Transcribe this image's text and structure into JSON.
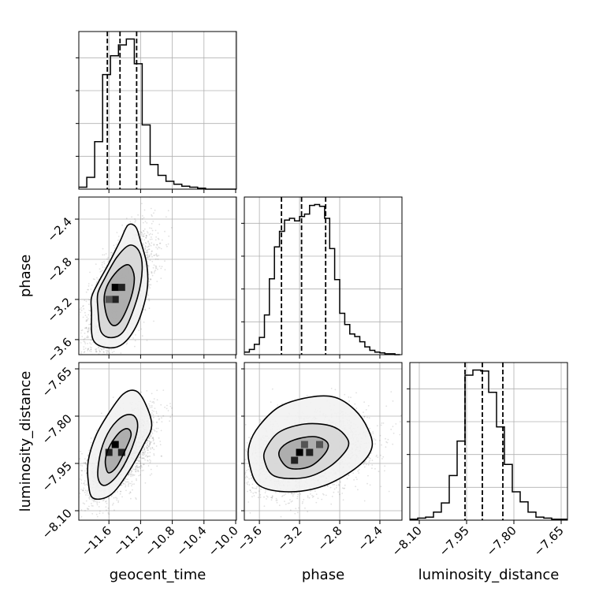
{
  "chart_data": {
    "type": "corner",
    "parameters": [
      "geocent_time",
      "phase",
      "luminosity_distance"
    ],
    "grid": true,
    "axes": {
      "geocent_time": {
        "label": "geocent_time",
        "range": [
          -11.98,
          -9.99
        ],
        "ticks": [
          -11.6,
          -11.2,
          -10.8,
          -10.4,
          -10.0
        ],
        "tick_labels": [
          "−11.6",
          "−11.2",
          "−10.8",
          "−10.4",
          "−10.0"
        ]
      },
      "phase": {
        "label": "phase",
        "range": [
          -3.75,
          -2.18
        ],
        "ticks": [
          -3.6,
          -3.2,
          -2.8,
          -2.4
        ],
        "tick_labels": [
          "−3.6",
          "−3.2",
          "−2.8",
          "−2.4"
        ]
      },
      "luminosity_distance": {
        "label": "luminosity_distance",
        "range": [
          -8.13,
          -7.63
        ],
        "ticks": [
          -8.1,
          -7.95,
          -7.8,
          -7.65
        ],
        "tick_labels": [
          "−8.10",
          "−7.95",
          "−7.80",
          "−7.65"
        ]
      }
    },
    "histograms": [
      {
        "parameter": "geocent_time",
        "bin_edges": [
          -11.98,
          -11.88,
          -11.78,
          -11.68,
          -11.58,
          -11.48,
          -11.38,
          -11.28,
          -11.18,
          -11.08,
          -10.98,
          -10.88,
          -10.78,
          -10.68,
          -10.58,
          -10.48,
          -10.38,
          -10.28,
          -10.18,
          -10.08,
          -9.99
        ],
        "counts": [
          2,
          12,
          48,
          116,
          135,
          146,
          152,
          127,
          65,
          25,
          14,
          8,
          5,
          3,
          2,
          1,
          0,
          0,
          0,
          0
        ],
        "quantiles": [
          -11.62,
          -11.46,
          -11.25
        ]
      },
      {
        "parameter": "phase",
        "bin_edges": [
          -3.75,
          -3.7,
          -3.65,
          -3.6,
          -3.55,
          -3.5,
          -3.45,
          -3.4,
          -3.35,
          -3.3,
          -3.25,
          -3.2,
          -3.15,
          -3.1,
          -3.05,
          -3.0,
          -2.95,
          -2.9,
          -2.85,
          -2.8,
          -2.75,
          -2.7,
          -2.65,
          -2.6,
          -2.55,
          -2.5,
          -2.45,
          -2.4,
          -2.35,
          -2.3,
          -2.25,
          -2.2
        ],
        "counts": [
          3,
          6,
          12,
          20,
          46,
          88,
          125,
          143,
          156,
          158,
          155,
          160,
          163,
          173,
          174,
          172,
          158,
          123,
          87,
          48,
          35,
          24,
          21,
          15,
          9,
          5,
          3,
          2,
          1,
          1,
          0
        ],
        "quantiles": [
          -3.38,
          -3.18,
          -2.94
        ]
      },
      {
        "parameter": "luminosity_distance",
        "bin_edges": [
          -8.13,
          -8.105,
          -8.08,
          -8.055,
          -8.03,
          -8.005,
          -7.98,
          -7.955,
          -7.93,
          -7.905,
          -7.88,
          -7.855,
          -7.83,
          -7.805,
          -7.78,
          -7.755,
          -7.73,
          -7.705,
          -7.68,
          -7.655,
          -7.63
        ],
        "counts": [
          1,
          2,
          3,
          8,
          17,
          44,
          78,
          143,
          148,
          147,
          126,
          92,
          55,
          28,
          18,
          8,
          3,
          2,
          1,
          1
        ],
        "quantiles": [
          -7.955,
          -7.9,
          -7.835
        ]
      }
    ],
    "scatter_panels": [
      {
        "x": "geocent_time",
        "y": "phase",
        "center": [
          -11.45,
          -3.12
        ],
        "sd": [
          0.2,
          0.28
        ],
        "corr": 0.6,
        "points": 3200,
        "peak_cells": [
          [
            -11.52,
            -3.08
          ],
          [
            -11.44,
            -3.08
          ],
          [
            -11.52,
            -3.2
          ],
          [
            -11.6,
            -3.2
          ]
        ],
        "contours": [
          [
            [
              -11.66,
              -3.22
            ],
            [
              -11.62,
              -3.38
            ],
            [
              -11.54,
              -3.46
            ],
            [
              -11.44,
              -3.4
            ],
            [
              -11.32,
              -3.18
            ],
            [
              -11.28,
              -2.98
            ],
            [
              -11.34,
              -2.86
            ],
            [
              -11.44,
              -2.88
            ],
            [
              -11.56,
              -2.98
            ],
            [
              -11.64,
              -3.1
            ]
          ],
          [
            [
              -11.74,
              -3.28
            ],
            [
              -11.7,
              -3.52
            ],
            [
              -11.56,
              -3.58
            ],
            [
              -11.4,
              -3.5
            ],
            [
              -11.24,
              -3.18
            ],
            [
              -11.18,
              -2.9
            ],
            [
              -11.22,
              -2.72
            ],
            [
              -11.34,
              -2.66
            ],
            [
              -11.5,
              -2.78
            ],
            [
              -11.66,
              -3.0
            ],
            [
              -11.74,
              -3.14
            ]
          ],
          [
            [
              -11.82,
              -3.32
            ],
            [
              -11.8,
              -3.6
            ],
            [
              -11.62,
              -3.68
            ],
            [
              -11.42,
              -3.64
            ],
            [
              -11.24,
              -3.44
            ],
            [
              -11.12,
              -3.12
            ],
            [
              -11.12,
              -2.86
            ],
            [
              -11.2,
              -2.62
            ],
            [
              -11.26,
              -2.48
            ],
            [
              -11.36,
              -2.46
            ],
            [
              -11.46,
              -2.62
            ],
            [
              -11.6,
              -2.84
            ],
            [
              -11.74,
              -3.04
            ],
            [
              -11.82,
              -3.18
            ]
          ]
        ]
      },
      {
        "x": "geocent_time",
        "y": "luminosity_distance",
        "center": [
          -11.46,
          -7.92
        ],
        "sd": [
          0.2,
          0.065
        ],
        "corr": 0.6,
        "points": 3200,
        "peak_cells": [
          [
            -11.52,
            -7.89
          ],
          [
            -11.44,
            -7.915
          ],
          [
            -11.6,
            -7.915
          ]
        ],
        "contours": [
          [
            [
              -11.64,
              -7.96
            ],
            [
              -11.6,
              -7.98
            ],
            [
              -11.5,
              -7.96
            ],
            [
              -11.38,
              -7.9
            ],
            [
              -11.32,
              -7.86
            ],
            [
              -11.36,
              -7.84
            ],
            [
              -11.46,
              -7.85
            ],
            [
              -11.58,
              -7.89
            ],
            [
              -11.64,
              -7.93
            ]
          ],
          [
            [
              -11.74,
              -7.99
            ],
            [
              -11.66,
              -8.02
            ],
            [
              -11.5,
              -7.99
            ],
            [
              -11.34,
              -7.92
            ],
            [
              -11.24,
              -7.84
            ],
            [
              -11.28,
              -7.8
            ],
            [
              -11.42,
              -7.8
            ],
            [
              -11.58,
              -7.84
            ],
            [
              -11.7,
              -7.91
            ]
          ],
          [
            [
              -11.86,
              -8.01
            ],
            [
              -11.8,
              -8.06
            ],
            [
              -11.58,
              -8.05
            ],
            [
              -11.36,
              -7.98
            ],
            [
              -11.16,
              -7.89
            ],
            [
              -11.06,
              -7.83
            ],
            [
              -11.14,
              -7.76
            ],
            [
              -11.26,
              -7.72
            ],
            [
              -11.42,
              -7.73
            ],
            [
              -11.6,
              -7.79
            ],
            [
              -11.76,
              -7.86
            ],
            [
              -11.86,
              -7.94
            ]
          ]
        ]
      },
      {
        "x": "phase",
        "y": "luminosity_distance",
        "center": [
          -3.12,
          -7.92
        ],
        "sd": [
          0.3,
          0.062
        ],
        "corr": 0.3,
        "points": 3200,
        "peak_cells": [
          [
            -3.2,
            -7.915
          ],
          [
            -3.1,
            -7.915
          ],
          [
            -3.25,
            -7.94
          ],
          [
            -3.0,
            -7.89
          ],
          [
            -3.15,
            -7.89
          ]
        ],
        "contours": [
          [
            [
              -3.4,
              -7.93
            ],
            [
              -3.3,
              -7.965
            ],
            [
              -3.1,
              -7.96
            ],
            [
              -2.95,
              -7.92
            ],
            [
              -2.92,
              -7.885
            ],
            [
              -3.05,
              -7.865
            ],
            [
              -3.25,
              -7.875
            ],
            [
              -3.38,
              -7.9
            ]
          ],
          [
            [
              -3.55,
              -7.94
            ],
            [
              -3.45,
              -7.99
            ],
            [
              -3.15,
              -7.995
            ],
            [
              -2.9,
              -7.96
            ],
            [
              -2.72,
              -7.9
            ],
            [
              -2.75,
              -7.86
            ],
            [
              -2.9,
              -7.83
            ],
            [
              -3.15,
              -7.825
            ],
            [
              -3.4,
              -7.85
            ],
            [
              -3.53,
              -7.9
            ]
          ],
          [
            [
              -3.7,
              -7.95
            ],
            [
              -3.6,
              -8.02
            ],
            [
              -3.3,
              -8.04
            ],
            [
              -2.95,
              -8.02
            ],
            [
              -2.62,
              -7.96
            ],
            [
              -2.48,
              -7.9
            ],
            [
              -2.52,
              -7.84
            ],
            [
              -2.65,
              -7.78
            ],
            [
              -2.85,
              -7.74
            ],
            [
              -3.1,
              -7.74
            ],
            [
              -3.4,
              -7.77
            ],
            [
              -3.6,
              -7.83
            ],
            [
              -3.7,
              -7.89
            ]
          ]
        ]
      }
    ]
  }
}
